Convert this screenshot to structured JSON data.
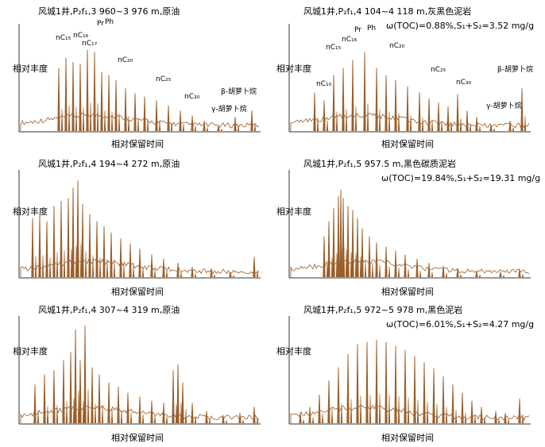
{
  "chart_data": [
    {
      "type": "line",
      "title": "风城1井,P₂f₁,3 960~3 976 m,原油",
      "subtitle": "",
      "xlabel": "相对保留时间",
      "ylabel": "相对丰度",
      "annotations": [
        "nC₁₅",
        "nC₁₆",
        "nC₁₇",
        "Pr",
        "Ph",
        "nC₂₀",
        "nC₂₅",
        "nC₃₀",
        "β-胡萝卜烷",
        "γ-胡萝卜烷"
      ],
      "color": "#9a5e2a",
      "peaks": [
        [
          0.16,
          0.62
        ],
        [
          0.19,
          0.72
        ],
        [
          0.22,
          0.68
        ],
        [
          0.25,
          0.66
        ],
        [
          0.28,
          0.8
        ],
        [
          0.31,
          0.78
        ],
        [
          0.34,
          0.58
        ],
        [
          0.37,
          0.55
        ],
        [
          0.4,
          0.5
        ],
        [
          0.44,
          0.42
        ],
        [
          0.48,
          0.37
        ],
        [
          0.52,
          0.34
        ],
        [
          0.57,
          0.3
        ],
        [
          0.62,
          0.25
        ],
        [
          0.67,
          0.2
        ],
        [
          0.72,
          0.15
        ],
        [
          0.77,
          0.1
        ],
        [
          0.83,
          0.05
        ],
        [
          0.9,
          0.14
        ],
        [
          0.97,
          0.2
        ]
      ]
    },
    {
      "type": "line",
      "title": "风城1井,P₂f₁,4 104~4 118 m,灰黑色泥岩",
      "subtitle": "ω(TOC)=0.88%,S₁+S₂=3.52 mg/g",
      "xlabel": "相对保留时间",
      "ylabel": "相对丰度",
      "annotations": [
        "nC₁₀",
        "nC₁₅",
        "nC₁₆",
        "Pr",
        "Ph",
        "nC₂₀",
        "nC₂₅",
        "nC₃₀",
        "β-胡萝卜烷",
        "γ-胡萝卜烷"
      ],
      "color": "#9a5e2a",
      "peaks": [
        [
          0.1,
          0.38
        ],
        [
          0.14,
          0.3
        ],
        [
          0.18,
          0.55
        ],
        [
          0.22,
          0.62
        ],
        [
          0.26,
          0.7
        ],
        [
          0.31,
          0.78
        ],
        [
          0.36,
          0.62
        ],
        [
          0.4,
          0.55
        ],
        [
          0.44,
          0.5
        ],
        [
          0.49,
          0.44
        ],
        [
          0.54,
          0.38
        ],
        [
          0.58,
          0.32
        ],
        [
          0.62,
          0.28
        ],
        [
          0.66,
          0.24
        ],
        [
          0.7,
          0.36
        ],
        [
          0.74,
          0.2
        ],
        [
          0.78,
          0.14
        ],
        [
          0.84,
          0.06
        ],
        [
          0.92,
          0.1
        ],
        [
          0.97,
          0.42
        ]
      ]
    },
    {
      "type": "line",
      "title": "风城1井,P₂f₁,4 194~4 272 m,原油",
      "subtitle": "",
      "xlabel": "相对保留时间",
      "ylabel": "相对丰度",
      "annotations": [],
      "color": "#9a5e2a",
      "peaks": [
        [
          0.05,
          0.58
        ],
        [
          0.08,
          0.62
        ],
        [
          0.11,
          0.55
        ],
        [
          0.14,
          0.7
        ],
        [
          0.17,
          0.75
        ],
        [
          0.2,
          0.78
        ],
        [
          0.22,
          0.88
        ],
        [
          0.24,
          0.95
        ],
        [
          0.26,
          0.72
        ],
        [
          0.29,
          0.62
        ],
        [
          0.32,
          0.55
        ],
        [
          0.35,
          0.5
        ],
        [
          0.38,
          0.44
        ],
        [
          0.42,
          0.38
        ],
        [
          0.46,
          0.33
        ],
        [
          0.5,
          0.28
        ],
        [
          0.55,
          0.22
        ],
        [
          0.6,
          0.18
        ],
        [
          0.66,
          0.14
        ],
        [
          0.72,
          0.1
        ],
        [
          0.8,
          0.07
        ],
        [
          0.88,
          0.05
        ],
        [
          0.98,
          0.2
        ]
      ]
    },
    {
      "type": "line",
      "title": "风城1井,P₂f₁,5 957.5  m,黑色碳质泥岩",
      "subtitle": "ω(TOC)=19.84%,S₁+S₂=19.31 mg/g",
      "xlabel": "相对保留时间",
      "ylabel": "相对丰度",
      "annotations": [],
      "color": "#9a5e2a",
      "peaks": [
        [
          0.14,
          0.4
        ],
        [
          0.16,
          0.55
        ],
        [
          0.18,
          0.68
        ],
        [
          0.2,
          0.8
        ],
        [
          0.21,
          0.86
        ],
        [
          0.22,
          0.78
        ],
        [
          0.24,
          0.7
        ],
        [
          0.26,
          0.66
        ],
        [
          0.28,
          0.58
        ],
        [
          0.3,
          0.48
        ],
        [
          0.33,
          0.4
        ],
        [
          0.36,
          0.34
        ],
        [
          0.4,
          0.3
        ],
        [
          0.44,
          0.26
        ],
        [
          0.48,
          0.22
        ],
        [
          0.53,
          0.18
        ],
        [
          0.58,
          0.14
        ],
        [
          0.64,
          0.11
        ],
        [
          0.7,
          0.08
        ],
        [
          0.78,
          0.06
        ],
        [
          0.88,
          0.05
        ],
        [
          0.96,
          0.08
        ]
      ]
    },
    {
      "type": "line",
      "title": "风城1井,P₂f₁,4 307~4 319 m,原油",
      "subtitle": "",
      "xlabel": "相对保留时间",
      "ylabel": "相对丰度",
      "annotations": [],
      "color": "#9a5e2a",
      "peaks": [
        [
          0.06,
          0.38
        ],
        [
          0.1,
          0.48
        ],
        [
          0.14,
          0.52
        ],
        [
          0.18,
          0.62
        ],
        [
          0.21,
          0.7
        ],
        [
          0.23,
          0.92
        ],
        [
          0.25,
          0.62
        ],
        [
          0.27,
          0.96
        ],
        [
          0.3,
          0.55
        ],
        [
          0.33,
          0.48
        ],
        [
          0.37,
          0.4
        ],
        [
          0.41,
          0.36
        ],
        [
          0.45,
          0.3
        ],
        [
          0.5,
          0.26
        ],
        [
          0.55,
          0.22
        ],
        [
          0.6,
          0.2
        ],
        [
          0.64,
          0.52
        ],
        [
          0.66,
          0.58
        ],
        [
          0.68,
          0.4
        ],
        [
          0.72,
          0.2
        ],
        [
          0.78,
          0.12
        ],
        [
          0.85,
          0.08
        ],
        [
          0.92,
          0.1
        ],
        [
          0.98,
          0.16
        ]
      ]
    },
    {
      "type": "line",
      "title": "风城1井,P₂f₁,5 972~5 978 m,黑色泥岩",
      "subtitle": "ω(TOC)=6.01%,S₁+S₂=4.27 mg/g",
      "xlabel": "相对保留时间",
      "ylabel": "相对丰度",
      "annotations": [],
      "color": "#9a5e2a",
      "peaks": [
        [
          0.04,
          0.1
        ],
        [
          0.08,
          0.16
        ],
        [
          0.12,
          0.28
        ],
        [
          0.16,
          0.42
        ],
        [
          0.2,
          0.55
        ],
        [
          0.24,
          0.68
        ],
        [
          0.28,
          0.78
        ],
        [
          0.32,
          0.8
        ],
        [
          0.36,
          0.82
        ],
        [
          0.4,
          0.8
        ],
        [
          0.44,
          0.76
        ],
        [
          0.48,
          0.72
        ],
        [
          0.52,
          0.66
        ],
        [
          0.56,
          0.6
        ],
        [
          0.6,
          0.54
        ],
        [
          0.64,
          0.46
        ],
        [
          0.68,
          0.38
        ],
        [
          0.72,
          0.3
        ],
        [
          0.76,
          0.22
        ],
        [
          0.8,
          0.16
        ],
        [
          0.86,
          0.12
        ],
        [
          0.9,
          0.1
        ],
        [
          0.96,
          0.24
        ]
      ]
    }
  ]
}
